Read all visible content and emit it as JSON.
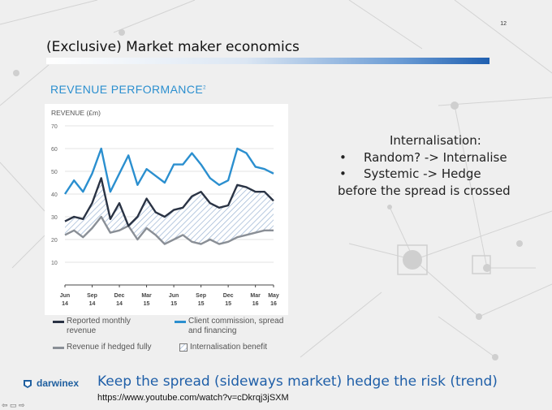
{
  "slide": {
    "page_number": "12",
    "title": "(Exclusive) Market maker economics",
    "right_text": {
      "heading": "Internalisation:",
      "bullets": [
        "Random? -> Internalise",
        "Systemic -> Hedge"
      ],
      "tail": "before the spread is crossed"
    },
    "caption": "Keep the spread (sideways market) hedge the risk (trend)",
    "url": "https://www.youtube.com/watch?v=cDkrqj3jSXM",
    "logo_text": "darwinex",
    "nav_icons": "⇦ ▭ ⇨",
    "colors": {
      "accent": "#2b8fcf",
      "title_bar": "#1f5fb0",
      "dark_series": "#2a3344",
      "grey_series": "#8a8f96"
    }
  },
  "chart_data": {
    "type": "line",
    "title": "REVENUE PERFORMANCE",
    "title_superscript": "2",
    "ylabel": "REVENUE (£m)",
    "ylim": [
      0,
      70
    ],
    "yticks": [
      "70",
      "60",
      "50",
      "40",
      "30",
      "20",
      "10"
    ],
    "grid": true,
    "x_tick_labels": [
      {
        "month": "Jun",
        "year": "14"
      },
      {
        "month": "Sep",
        "year": "14"
      },
      {
        "month": "Dec",
        "year": "14"
      },
      {
        "month": "Mar",
        "year": "15"
      },
      {
        "month": "Jun",
        "year": "15"
      },
      {
        "month": "Sep",
        "year": "15"
      },
      {
        "month": "Dec",
        "year": "15"
      },
      {
        "month": "Mar",
        "year": "16"
      },
      {
        "month": "May",
        "year": "16"
      }
    ],
    "months": 24,
    "series": [
      {
        "name": "Client commission, spread and financing",
        "color": "#2b8fcf",
        "values": [
          40,
          46,
          41,
          49,
          60,
          41,
          49,
          57,
          44,
          51,
          48,
          45,
          53,
          53,
          58,
          53,
          47,
          44,
          46,
          60,
          58,
          52,
          51,
          49
        ]
      },
      {
        "name": "Reported monthly revenue",
        "color": "#2a3344",
        "values": [
          28,
          30,
          29,
          36,
          47,
          29,
          36,
          26,
          30,
          38,
          32,
          30,
          33,
          34,
          39,
          41,
          36,
          34,
          35,
          44,
          43,
          41,
          41,
          37
        ]
      },
      {
        "name": "Revenue if hedged fully",
        "color": "#8a8f96",
        "values": [
          22,
          24,
          21,
          25,
          30,
          23,
          24,
          26,
          20,
          25,
          22,
          18,
          20,
          22,
          19,
          18,
          20,
          18,
          19,
          21,
          22,
          23,
          24,
          24
        ]
      }
    ],
    "area": {
      "name": "Internalisation benefit",
      "between": [
        "Reported monthly revenue",
        "Revenue if hedged fully"
      ]
    },
    "legend_position": "bottom"
  }
}
